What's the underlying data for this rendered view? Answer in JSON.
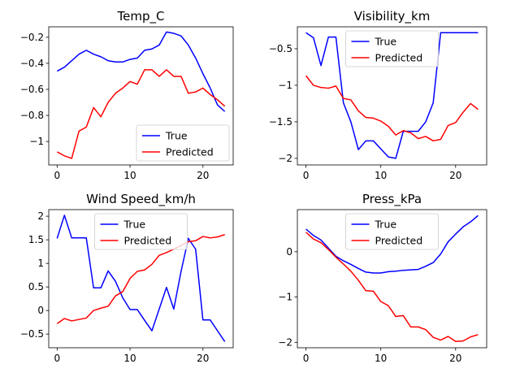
{
  "chart_data": [
    {
      "type": "line",
      "title": "Temp_C",
      "xlim": [
        -1.15,
        24.15
      ],
      "ylim": [
        -1.18,
        -0.12
      ],
      "xticks": [
        0,
        10,
        20
      ],
      "yticks": [
        -1.0,
        -0.8,
        -0.6,
        -0.4,
        -0.2
      ],
      "legend": "lower-right",
      "x": [
        0,
        1,
        2,
        3,
        4,
        5,
        6,
        7,
        8,
        9,
        10,
        11,
        12,
        13,
        14,
        15,
        16,
        17,
        18,
        19,
        20,
        21,
        22,
        23
      ],
      "series": [
        {
          "name": "True",
          "color": "#0000ff",
          "values": [
            -0.46,
            -0.43,
            -0.38,
            -0.33,
            -0.3,
            -0.33,
            -0.35,
            -0.38,
            -0.39,
            -0.39,
            -0.37,
            -0.36,
            -0.3,
            -0.29,
            -0.26,
            -0.16,
            -0.17,
            -0.19,
            -0.26,
            -0.36,
            -0.48,
            -0.59,
            -0.72,
            -0.77
          ]
        },
        {
          "name": "Predicted",
          "color": "#ff0000",
          "values": [
            -1.08,
            -1.11,
            -1.13,
            -0.92,
            -0.89,
            -0.74,
            -0.81,
            -0.7,
            -0.63,
            -0.59,
            -0.54,
            -0.56,
            -0.45,
            -0.45,
            -0.5,
            -0.45,
            -0.5,
            -0.5,
            -0.63,
            -0.62,
            -0.59,
            -0.64,
            -0.68,
            -0.73
          ]
        }
      ]
    },
    {
      "type": "line",
      "title": "Visibility_km",
      "xlim": [
        -1.15,
        24.15
      ],
      "ylim": [
        -2.09,
        -0.2
      ],
      "xticks": [
        0,
        10,
        20
      ],
      "yticks": [
        -2.0,
        -1.5,
        -1.0,
        -0.5
      ],
      "legend": "upper-center",
      "x": [
        0,
        1,
        2,
        3,
        4,
        5,
        6,
        7,
        8,
        9,
        10,
        11,
        12,
        13,
        14,
        15,
        16,
        17,
        18,
        19,
        20,
        21,
        22,
        23
      ],
      "series": [
        {
          "name": "True",
          "color": "#0000ff",
          "values": [
            -0.28,
            -0.35,
            -0.73,
            -0.34,
            -0.34,
            -1.24,
            -1.5,
            -1.88,
            -1.76,
            -1.76,
            -1.87,
            -1.98,
            -2.0,
            -1.63,
            -1.63,
            -1.63,
            -1.5,
            -1.24,
            -0.28,
            -0.28,
            -0.28,
            -0.28,
            -0.28,
            -0.28
          ]
        },
        {
          "name": "Predicted",
          "color": "#ff0000",
          "values": [
            -0.87,
            -1.0,
            -1.03,
            -1.04,
            -1.01,
            -1.18,
            -1.2,
            -1.35,
            -1.44,
            -1.45,
            -1.49,
            -1.56,
            -1.68,
            -1.62,
            -1.65,
            -1.73,
            -1.7,
            -1.76,
            -1.74,
            -1.55,
            -1.51,
            -1.37,
            -1.25,
            -1.33
          ]
        }
      ]
    },
    {
      "type": "line",
      "title": "Wind Speed_km/h",
      "xlim": [
        -1.15,
        24.15
      ],
      "ylim": [
        -0.79,
        2.14
      ],
      "xticks": [
        0,
        10,
        20
      ],
      "yticks": [
        -0.5,
        0.0,
        0.5,
        1.0,
        1.5,
        2.0
      ],
      "legend": "upper-center",
      "x": [
        0,
        1,
        2,
        3,
        4,
        5,
        6,
        7,
        8,
        9,
        10,
        11,
        12,
        13,
        14,
        15,
        16,
        17,
        18,
        19,
        20,
        21,
        22,
        23
      ],
      "series": [
        {
          "name": "True",
          "color": "#0000ff",
          "values": [
            1.53,
            2.02,
            1.54,
            1.54,
            1.54,
            0.48,
            0.48,
            0.84,
            0.62,
            0.27,
            0.02,
            0.02,
            -0.21,
            -0.43,
            0.03,
            0.49,
            0.03,
            0.83,
            1.53,
            1.3,
            -0.2,
            -0.2,
            -0.43,
            -0.66
          ]
        },
        {
          "name": "Predicted",
          "color": "#ff0000",
          "values": [
            -0.28,
            -0.17,
            -0.22,
            -0.19,
            -0.16,
            0.0,
            0.05,
            0.09,
            0.31,
            0.4,
            0.68,
            0.83,
            0.86,
            0.98,
            1.17,
            1.23,
            1.3,
            1.38,
            1.46,
            1.48,
            1.57,
            1.54,
            1.56,
            1.61
          ]
        }
      ]
    },
    {
      "type": "line",
      "title": "Press_kPa",
      "xlim": [
        -1.15,
        24.15
      ],
      "ylim": [
        -2.12,
        0.93
      ],
      "xticks": [
        0,
        10,
        20
      ],
      "yticks": [
        -2,
        -1,
        0
      ],
      "legend": "upper-center",
      "x": [
        0,
        1,
        2,
        3,
        4,
        5,
        6,
        7,
        8,
        9,
        10,
        11,
        12,
        13,
        14,
        15,
        16,
        17,
        18,
        19,
        20,
        21,
        22,
        23
      ],
      "series": [
        {
          "name": "True",
          "color": "#0000ff",
          "values": [
            0.5,
            0.36,
            0.26,
            0.08,
            -0.1,
            -0.2,
            -0.28,
            -0.37,
            -0.45,
            -0.47,
            -0.47,
            -0.44,
            -0.43,
            -0.41,
            -0.4,
            -0.39,
            -0.32,
            -0.24,
            -0.05,
            0.22,
            0.39,
            0.55,
            0.66,
            0.8
          ]
        },
        {
          "name": "Predicted",
          "color": "#ff0000",
          "values": [
            0.43,
            0.28,
            0.2,
            0.05,
            -0.12,
            -0.27,
            -0.43,
            -0.63,
            -0.86,
            -0.87,
            -1.1,
            -1.19,
            -1.43,
            -1.41,
            -1.66,
            -1.66,
            -1.72,
            -1.89,
            -1.95,
            -1.87,
            -1.98,
            -1.97,
            -1.88,
            -1.83
          ]
        }
      ]
    }
  ]
}
